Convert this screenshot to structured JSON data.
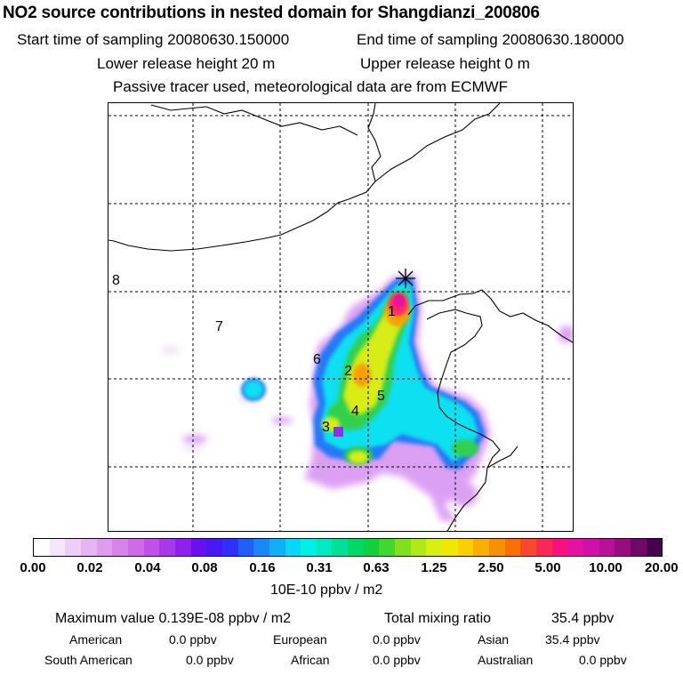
{
  "header": {
    "title": "NO2 source contributions in nested domain for Shangdianzi_200806",
    "start_label": "Start time of sampling 20080630.150000",
    "end_label": "End time of sampling 20080630.180000",
    "lower_label": "Lower release height   20 m",
    "upper_label": "Upper release height    0 m",
    "note": "Passive tracer used, meteorological data are from ECMWF"
  },
  "map": {
    "region_labels": [
      "1",
      "2",
      "3",
      "4",
      "5",
      "6",
      "7",
      "8"
    ],
    "colors": {
      "coast": "#000000",
      "grid": "#000000"
    }
  },
  "colorbar": {
    "colors": [
      "#ffffff",
      "#f6e6fa",
      "#eecdf6",
      "#e6b4f2",
      "#df9cee",
      "#d783ea",
      "#cf6ae6",
      "#c050e8",
      "#a838ec",
      "#8e20f0",
      "#6a10f0",
      "#4a18f4",
      "#3030f8",
      "#2060f8",
      "#1888f8",
      "#10b0f8",
      "#08d8f8",
      "#00f0e8",
      "#00e8c0",
      "#00e098",
      "#00d868",
      "#10d040",
      "#40d830",
      "#80e020",
      "#b0e818",
      "#d8f010",
      "#f0e800",
      "#f8d000",
      "#f8b000",
      "#f89000",
      "#f87000",
      "#f84830",
      "#f82858",
      "#f81080",
      "#e810a0",
      "#d010a8",
      "#b81098",
      "#980c80",
      "#700868",
      "#480050"
    ],
    "tick_labels": [
      "0.00",
      "0.02",
      "0.04",
      "0.08",
      "0.16",
      "0.31",
      "0.63",
      "1.25",
      "2.50",
      "5.00",
      "10.00",
      "20.00"
    ],
    "unit": "10E-10 ppbv / m2"
  },
  "footer": {
    "max_label": "Maximum value  0.139E-08 ppbv / m2",
    "total_label": "Total mixing ratio",
    "total_value": "35.4 ppbv",
    "regions": [
      {
        "name": "American",
        "value": "0.0 ppbv"
      },
      {
        "name": "European",
        "value": "0.0 ppbv"
      },
      {
        "name": "Asian",
        "value": "35.4 ppbv"
      },
      {
        "name": "South American",
        "value": "0.0 ppbv"
      },
      {
        "name": "African",
        "value": "0.0 ppbv"
      },
      {
        "name": "Australian",
        "value": "0.0 ppbv"
      }
    ]
  }
}
